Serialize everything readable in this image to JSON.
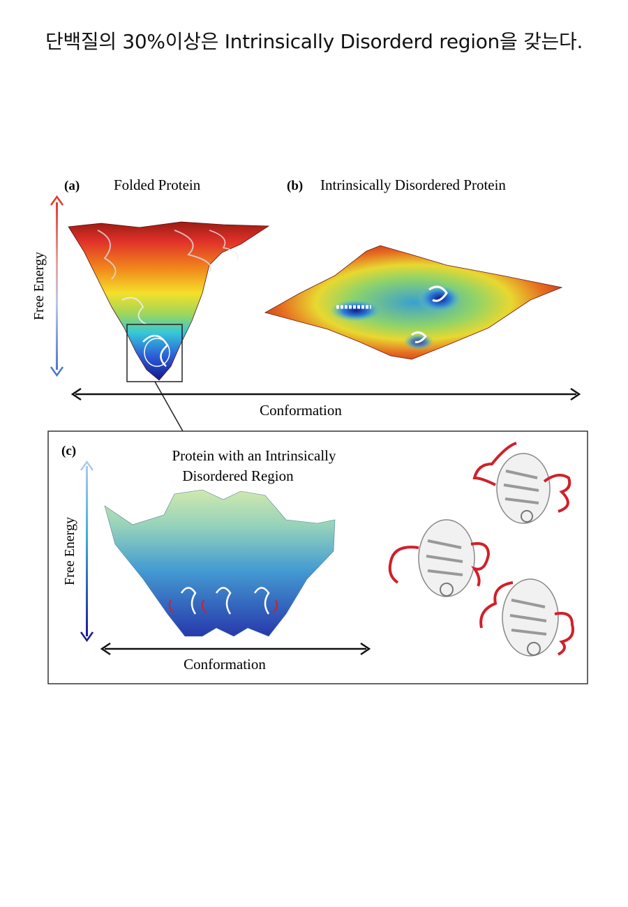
{
  "headline": "단백질의 30%이상은 Intrinsically Disorderd region을 갖는다.",
  "figure": {
    "panel_a": {
      "letter": "(a)",
      "title": "Folded Protein"
    },
    "panel_b": {
      "letter": "(b)",
      "title": "Intrinsically Disordered Protein"
    },
    "axis_free_energy": "Free Energy",
    "axis_conformation": "Conformation",
    "panel_c": {
      "letter": "(c)",
      "title_line1": "Protein with an Intrinsically",
      "title_line2": "Disordered Region",
      "axis_free_energy": "Free Energy",
      "axis_conformation": "Conformation"
    }
  },
  "colors": {
    "high_energy": "#e0302a",
    "low_energy": "#1a2fb0",
    "disordered_region": "#d0202a",
    "protein_ribbon": "#ffffff"
  }
}
